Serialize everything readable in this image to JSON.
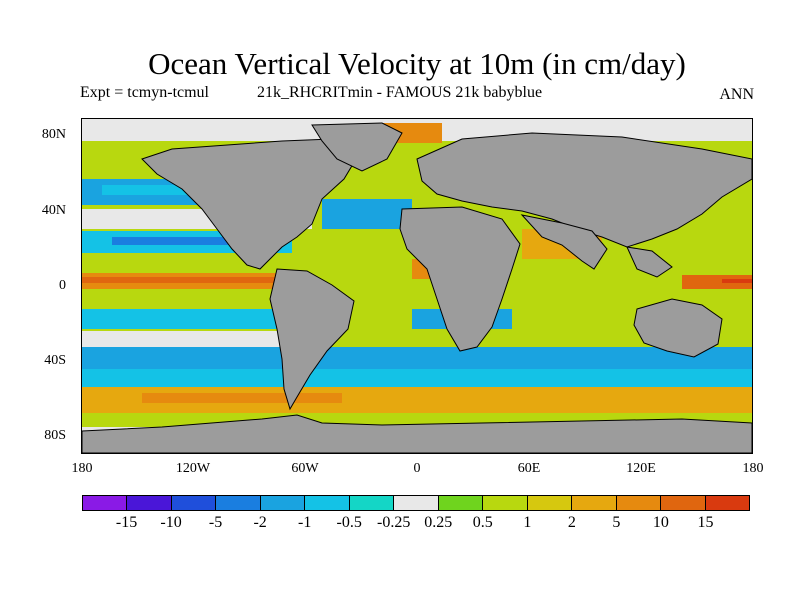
{
  "figure": {
    "title": "Ocean Vertical Velocity at 10m (in cm/day)",
    "subtitle_left": "Expt = tcmyn-tcmul",
    "subtitle_mid": "21k_RHCRITmin - FAMOUS 21k babyblue",
    "subtitle_right": "ANN"
  },
  "map": {
    "projection": "equirectangular",
    "lon_range": [
      -180,
      180
    ],
    "lat_range": [
      -90,
      90
    ],
    "land_color": "#9c9c9c",
    "y_ticks": [
      "80N",
      "40N",
      "0",
      "40S",
      "80S"
    ],
    "x_ticks": [
      "180",
      "120W",
      "60W",
      "0",
      "60E",
      "120E",
      "180"
    ]
  },
  "colorbar": {
    "colors": [
      "#8a1ae6",
      "#4a16d8",
      "#1f4fdb",
      "#1a7ee0",
      "#1aa3e0",
      "#14c2e6",
      "#14d6c6",
      "#e8e8e8",
      "#6fd41e",
      "#b8d80f",
      "#d6c80f",
      "#e6a80f",
      "#e68a0f",
      "#e0660f",
      "#d93a0f"
    ],
    "labels": [
      "-15",
      "-10",
      "-5",
      "-2",
      "-1",
      "-0.5",
      "-0.25",
      "0.25",
      "0.5",
      "1",
      "2",
      "5",
      "10",
      "15"
    ]
  }
}
